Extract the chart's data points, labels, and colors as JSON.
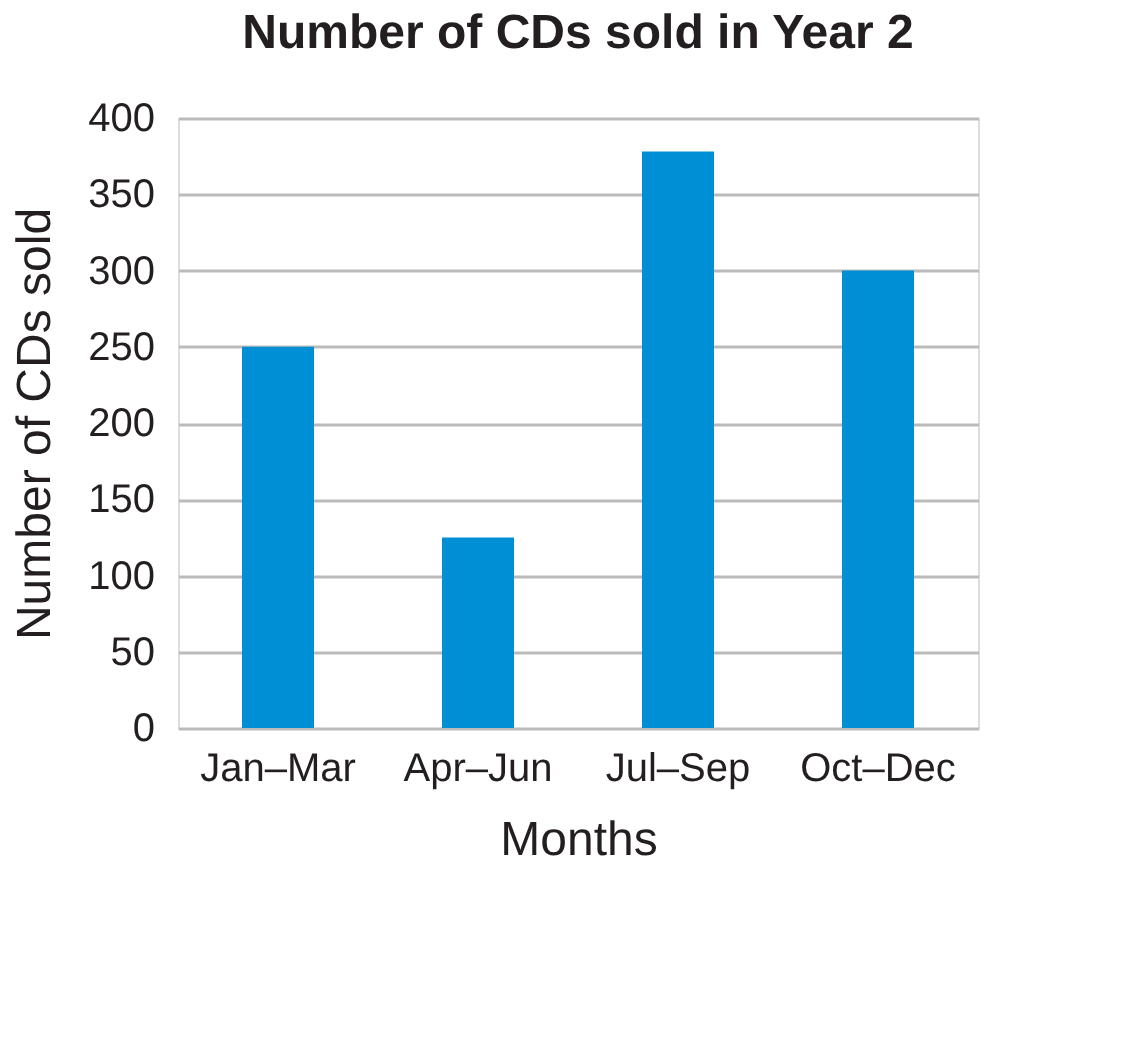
{
  "chart_data": {
    "type": "bar",
    "title": "Number of CDs sold in Year 2",
    "xlabel": "Months",
    "ylabel": "Number of CDs sold",
    "categories": [
      "Jan–Mar",
      "Apr–Jun",
      "Jul–Sep",
      "Oct–Dec"
    ],
    "values": [
      250,
      125,
      378,
      300
    ],
    "color": "#008fd5",
    "ylim": [
      0,
      400
    ],
    "yticks": [
      0,
      50,
      100,
      150,
      200,
      250,
      300,
      350,
      400
    ],
    "grid": "y"
  }
}
